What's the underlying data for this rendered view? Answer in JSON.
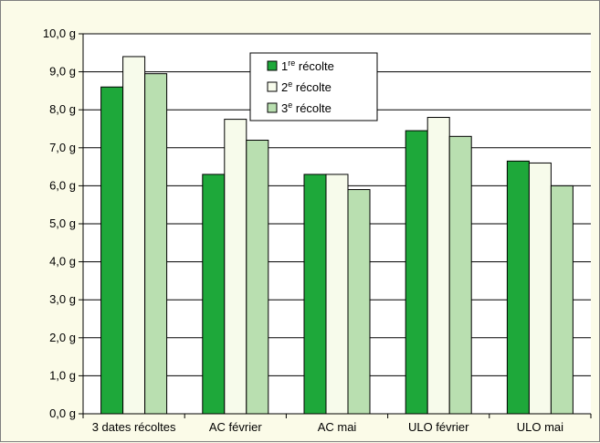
{
  "chart_data": {
    "type": "bar",
    "categories": [
      "3 dates récoltes",
      "AC février",
      "AC mai",
      "ULO février",
      "ULO mai"
    ],
    "series": [
      {
        "name_prefix": "1",
        "name_sup": "re",
        "name_suffix": " récolte",
        "color": "#1ea83a",
        "values": [
          8.6,
          6.3,
          6.3,
          7.45,
          6.65
        ]
      },
      {
        "name_prefix": "2",
        "name_sup": "e",
        "name_suffix": " récolte",
        "color": "#f7fbeb",
        "values": [
          9.4,
          7.75,
          6.3,
          7.8,
          6.6
        ]
      },
      {
        "name_prefix": "3",
        "name_sup": "e",
        "name_suffix": " récolte",
        "color": "#b9dfb0",
        "values": [
          8.95,
          7.2,
          5.9,
          7.3,
          6.0
        ]
      }
    ],
    "y_tick_labels": [
      "0,0 g",
      "1,0 g",
      "2,0 g",
      "3,0 g",
      "4,0 g",
      "5,0 g",
      "6,0 g",
      "7,0 g",
      "8,0 g",
      "9,0 g",
      "10,0 g"
    ],
    "ylim": [
      0,
      10
    ],
    "y_step": 1,
    "grid": true,
    "legend_position": "top-center",
    "plot_background": "#ffffff",
    "page_background": "#fbfbe8"
  }
}
